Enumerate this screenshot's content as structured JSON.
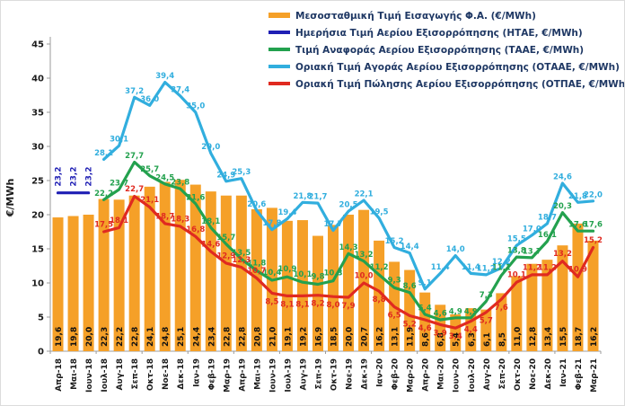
{
  "chart_data": {
    "type": "combo-bar-line",
    "title": "",
    "ylabel": "€/MWh",
    "ylim": [
      0,
      45
    ],
    "yticks": [
      0,
      5,
      10,
      15,
      20,
      25,
      30,
      35,
      40,
      45
    ],
    "grid": false,
    "legend_position": "top",
    "decimal_separator": ",",
    "categories": [
      "Απρ-18",
      "Μαι-18",
      "Ιουν-18",
      "Ιουλ-18",
      "Αυγ-18",
      "Σεπ-18",
      "Οκτ-18",
      "Νοε-18",
      "Δεκ-18",
      "Ιαν-19",
      "Φεβ-19",
      "Μαρ-19",
      "Απρ-19",
      "Μαι-19",
      "Ιουν-19",
      "Ιουλ-19",
      "Αυγ-19",
      "Σεπ-19",
      "Οκτ-19",
      "Νοε-19",
      "Δεκ-19",
      "Ιαν-20",
      "Φεβ-20",
      "Μαρ-20",
      "Απρ-20",
      "Μαι-20",
      "Ιουν-20",
      "Ιουλ-20",
      "Αυγ-20",
      "Σεπ-20",
      "Οκτ-20",
      "Νοε-20",
      "Δεκ-20",
      "Ιαν-21",
      "Φεβ-21",
      "Μαρ-21"
    ],
    "bar_series": {
      "name": "Μεσοσταθμική Τιμή Εισαγωγής Φ.Α. (€/MWh)",
      "color": "#F5A028",
      "values": [
        19.6,
        19.8,
        20.0,
        22.3,
        22.2,
        22.8,
        24.1,
        24.8,
        25.1,
        24.4,
        23.4,
        22.8,
        22.8,
        20.8,
        21.0,
        19.1,
        19.2,
        16.9,
        18.5,
        20.0,
        20.7,
        16.2,
        13.1,
        11.9,
        8.6,
        6.8,
        5.4,
        6.3,
        6.1,
        8.5,
        11.0,
        12.8,
        13.4,
        15.5,
        18.7,
        16.2
      ]
    },
    "line_series": [
      {
        "name": "Ημερήσια Τιμή Αερίου Εξισορρόπησης (ΗΤΑΕ, €/MWh)",
        "color": "#1F1FB4",
        "label_style": "rotated",
        "values": [
          23.2,
          23.2,
          23.2,
          null,
          null,
          null,
          null,
          null,
          null,
          null,
          null,
          null,
          null,
          null,
          null,
          null,
          null,
          null,
          null,
          null,
          null,
          null,
          null,
          null,
          null,
          null,
          null,
          null,
          null,
          null,
          null,
          null,
          null,
          null,
          null,
          null
        ]
      },
      {
        "name": "Τιμή Αναφοράς Αερίου Εξισορρόπησης (ΤΑΑΕ, €/MWh)",
        "color": "#23A14E",
        "label_style": "horizontal",
        "values": [
          null,
          null,
          null,
          22.2,
          23.7,
          27.7,
          25.7,
          24.5,
          23.8,
          21.6,
          18.1,
          15.7,
          13.5,
          11.8,
          10.4,
          10.9,
          10.1,
          9.8,
          10.3,
          14.3,
          13.2,
          11.2,
          9.3,
          8.6,
          5.4,
          4.6,
          4.9,
          4.9,
          7.3,
          11.1,
          13.8,
          13.7,
          16.1,
          20.3,
          17.6,
          17.6
        ]
      },
      {
        "name": "Οριακή Τιμή Αγοράς Αερίου Εξισορρόπησης  (ΟΤΑΑΕ, €/MWh)",
        "color": "#31AEDE",
        "label_style": "horizontal",
        "values": [
          null,
          null,
          null,
          28.1,
          30.1,
          37.2,
          36.0,
          39.4,
          37.4,
          35.0,
          29.0,
          24.9,
          25.3,
          20.6,
          17.8,
          19.4,
          21.8,
          21.7,
          17.7,
          20.5,
          22.1,
          19.5,
          15.2,
          14.4,
          9.1,
          11.4,
          14.0,
          11.4,
          11.2,
          12.2,
          15.5,
          17.0,
          18.7,
          24.6,
          21.8,
          22.0
        ]
      },
      {
        "name": "Οριακή Τιμή Πώλησης Αερίου Εξισορρόπησης (ΟΤΠΑΕ, €/MWh)",
        "color": "#E02A20",
        "label_style": "horizontal",
        "values": [
          null,
          null,
          null,
          17.5,
          18.1,
          22.7,
          21.1,
          18.7,
          18.3,
          16.8,
          14.6,
          12.9,
          12.3,
          10.7,
          8.5,
          8.1,
          8.1,
          8.2,
          8.0,
          7.9,
          10.0,
          8.8,
          6.5,
          5.2,
          4.6,
          3.9,
          3.4,
          4.4,
          5.7,
          7.6,
          10.1,
          11.2,
          11.2,
          13.2,
          10.9,
          15.2
        ]
      }
    ],
    "legend_text_color": "#1F3864",
    "axis_text_color": "#1a1a1a",
    "axis_line_color": "#9b9b9b"
  }
}
